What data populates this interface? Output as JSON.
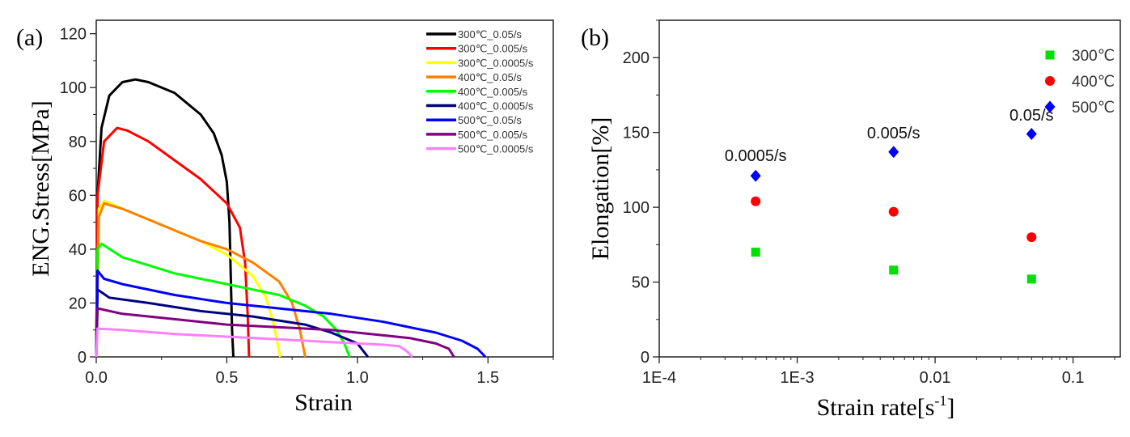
{
  "chart_data": [
    {
      "type": "line",
      "panel_label": "(a)",
      "xlabel": "Strain",
      "ylabel": "ENG.Stress[MPa]",
      "xlim": [
        0,
        1.75
      ],
      "ylim": [
        0,
        125
      ],
      "xticks": [
        "0.0",
        "0.5",
        "1.0",
        "1.5"
      ],
      "xtick_values": [
        0,
        0.5,
        1.0,
        1.5
      ],
      "yticks": [
        "0",
        "20",
        "40",
        "60",
        "80",
        "100",
        "120"
      ],
      "ytick_values": [
        0,
        20,
        40,
        60,
        80,
        100,
        120
      ],
      "grid": false,
      "legend_position": "top-right",
      "series": [
        {
          "name": "300℃_0.05/s",
          "color": "#000000",
          "points": [
            [
              0,
              0
            ],
            [
              0.005,
              60
            ],
            [
              0.02,
              85
            ],
            [
              0.05,
              97
            ],
            [
              0.1,
              102
            ],
            [
              0.15,
              103
            ],
            [
              0.2,
              102
            ],
            [
              0.3,
              98
            ],
            [
              0.4,
              90
            ],
            [
              0.45,
              83
            ],
            [
              0.48,
              75
            ],
            [
              0.5,
              65
            ],
            [
              0.51,
              50
            ],
            [
              0.515,
              30
            ],
            [
              0.52,
              10
            ],
            [
              0.525,
              0
            ]
          ]
        },
        {
          "name": "300℃_0.005/s",
          "color": "#ff0000",
          "points": [
            [
              0,
              0
            ],
            [
              0.005,
              60
            ],
            [
              0.03,
              80
            ],
            [
              0.08,
              85
            ],
            [
              0.12,
              84
            ],
            [
              0.2,
              80
            ],
            [
              0.3,
              73
            ],
            [
              0.4,
              66
            ],
            [
              0.5,
              57
            ],
            [
              0.55,
              48
            ],
            [
              0.57,
              35
            ],
            [
              0.58,
              15
            ],
            [
              0.585,
              0
            ]
          ]
        },
        {
          "name": "300℃_0.0005/s",
          "color": "#ffff00",
          "points": [
            [
              0,
              0
            ],
            [
              0.01,
              55
            ],
            [
              0.03,
              58
            ],
            [
              0.1,
              55
            ],
            [
              0.2,
              51
            ],
            [
              0.3,
              47
            ],
            [
              0.4,
              43
            ],
            [
              0.5,
              38
            ],
            [
              0.6,
              30
            ],
            [
              0.65,
              22
            ],
            [
              0.68,
              12
            ],
            [
              0.7,
              2
            ],
            [
              0.705,
              0
            ]
          ]
        },
        {
          "name": "400℃_0.05/s",
          "color": "#ff8000",
          "points": [
            [
              0,
              0
            ],
            [
              0.01,
              52
            ],
            [
              0.03,
              57
            ],
            [
              0.1,
              55
            ],
            [
              0.2,
              51
            ],
            [
              0.3,
              47
            ],
            [
              0.4,
              43
            ],
            [
              0.5,
              40
            ],
            [
              0.6,
              35
            ],
            [
              0.7,
              28
            ],
            [
              0.75,
              20
            ],
            [
              0.78,
              10
            ],
            [
              0.8,
              0
            ]
          ]
        },
        {
          "name": "400℃_0.005/s",
          "color": "#00ff00",
          "points": [
            [
              0,
              0
            ],
            [
              0.005,
              40
            ],
            [
              0.02,
              42
            ],
            [
              0.1,
              37
            ],
            [
              0.2,
              34
            ],
            [
              0.3,
              31
            ],
            [
              0.4,
              29
            ],
            [
              0.5,
              27
            ],
            [
              0.6,
              25
            ],
            [
              0.7,
              23
            ],
            [
              0.8,
              19
            ],
            [
              0.87,
              15
            ],
            [
              0.92,
              10
            ],
            [
              0.95,
              5
            ],
            [
              0.97,
              0
            ]
          ]
        },
        {
          "name": "400℃_0.0005/s",
          "color": "#000080",
          "points": [
            [
              0,
              0
            ],
            [
              0.005,
              25
            ],
            [
              0.05,
              22
            ],
            [
              0.2,
              20
            ],
            [
              0.4,
              17
            ],
            [
              0.6,
              15
            ],
            [
              0.8,
              12
            ],
            [
              0.9,
              9
            ],
            [
              1.0,
              5
            ],
            [
              1.04,
              0
            ]
          ]
        },
        {
          "name": "500℃_0.05/s",
          "color": "#0000ff",
          "points": [
            [
              0,
              0
            ],
            [
              0.005,
              32
            ],
            [
              0.03,
              29
            ],
            [
              0.1,
              27
            ],
            [
              0.3,
              23
            ],
            [
              0.5,
              20
            ],
            [
              0.7,
              18
            ],
            [
              0.9,
              16
            ],
            [
              1.1,
              13
            ],
            [
              1.2,
              11
            ],
            [
              1.3,
              9
            ],
            [
              1.4,
              6
            ],
            [
              1.46,
              3
            ],
            [
              1.49,
              0
            ]
          ]
        },
        {
          "name": "500℃_0.005/s",
          "color": "#800080",
          "points": [
            [
              0,
              0
            ],
            [
              0.005,
              18
            ],
            [
              0.1,
              16
            ],
            [
              0.3,
              14
            ],
            [
              0.5,
              12
            ],
            [
              0.7,
              11
            ],
            [
              0.9,
              10
            ],
            [
              1.1,
              8
            ],
            [
              1.2,
              7
            ],
            [
              1.3,
              5
            ],
            [
              1.35,
              3
            ],
            [
              1.37,
              0
            ]
          ]
        },
        {
          "name": "500℃_0.0005/s",
          "color": "#ff80ff",
          "points": [
            [
              0,
              0
            ],
            [
              0.005,
              10.5
            ],
            [
              0.1,
              10
            ],
            [
              0.3,
              8.5
            ],
            [
              0.5,
              7.5
            ],
            [
              0.7,
              6.5
            ],
            [
              0.9,
              5.5
            ],
            [
              1.1,
              4.5
            ],
            [
              1.16,
              4
            ],
            [
              1.19,
              2
            ],
            [
              1.21,
              0
            ]
          ]
        }
      ]
    },
    {
      "type": "scatter",
      "panel_label": "(b)",
      "xlabel": "Strain rate[s",
      "xlabel_sup": "-1",
      "xlabel_end": "]",
      "ylabel": "Elongation[%]",
      "xscale": "log",
      "xlim": [
        0.0001,
        0.22
      ],
      "ylim": [
        0,
        225
      ],
      "xticks": [
        "1E-4",
        "1E-3",
        "0.01",
        "0.1"
      ],
      "xtick_values": [
        0.0001,
        0.001,
        0.01,
        0.1
      ],
      "yticks": [
        "0",
        "50",
        "100",
        "150",
        "200"
      ],
      "ytick_values": [
        0,
        50,
        100,
        150,
        200
      ],
      "grid": false,
      "legend_position": "top-right",
      "x": [
        0.0005,
        0.005,
        0.05
      ],
      "annotations": [
        {
          "text": "0.0005/s",
          "x": 0.0005,
          "y": 131
        },
        {
          "text": "0.005/s",
          "x": 0.005,
          "y": 146
        },
        {
          "text": "0.05/s",
          "x": 0.05,
          "y": 158
        }
      ],
      "series": [
        {
          "name": "300℃",
          "color": "#00e000",
          "marker": "square",
          "values": [
            70,
            58,
            52
          ]
        },
        {
          "name": "400℃",
          "color": "#ff0000",
          "marker": "circle",
          "values": [
            104,
            97,
            80
          ]
        },
        {
          "name": "500℃",
          "color": "#0000ff",
          "marker": "diamond",
          "values": [
            121,
            137,
            149
          ]
        }
      ]
    }
  ]
}
